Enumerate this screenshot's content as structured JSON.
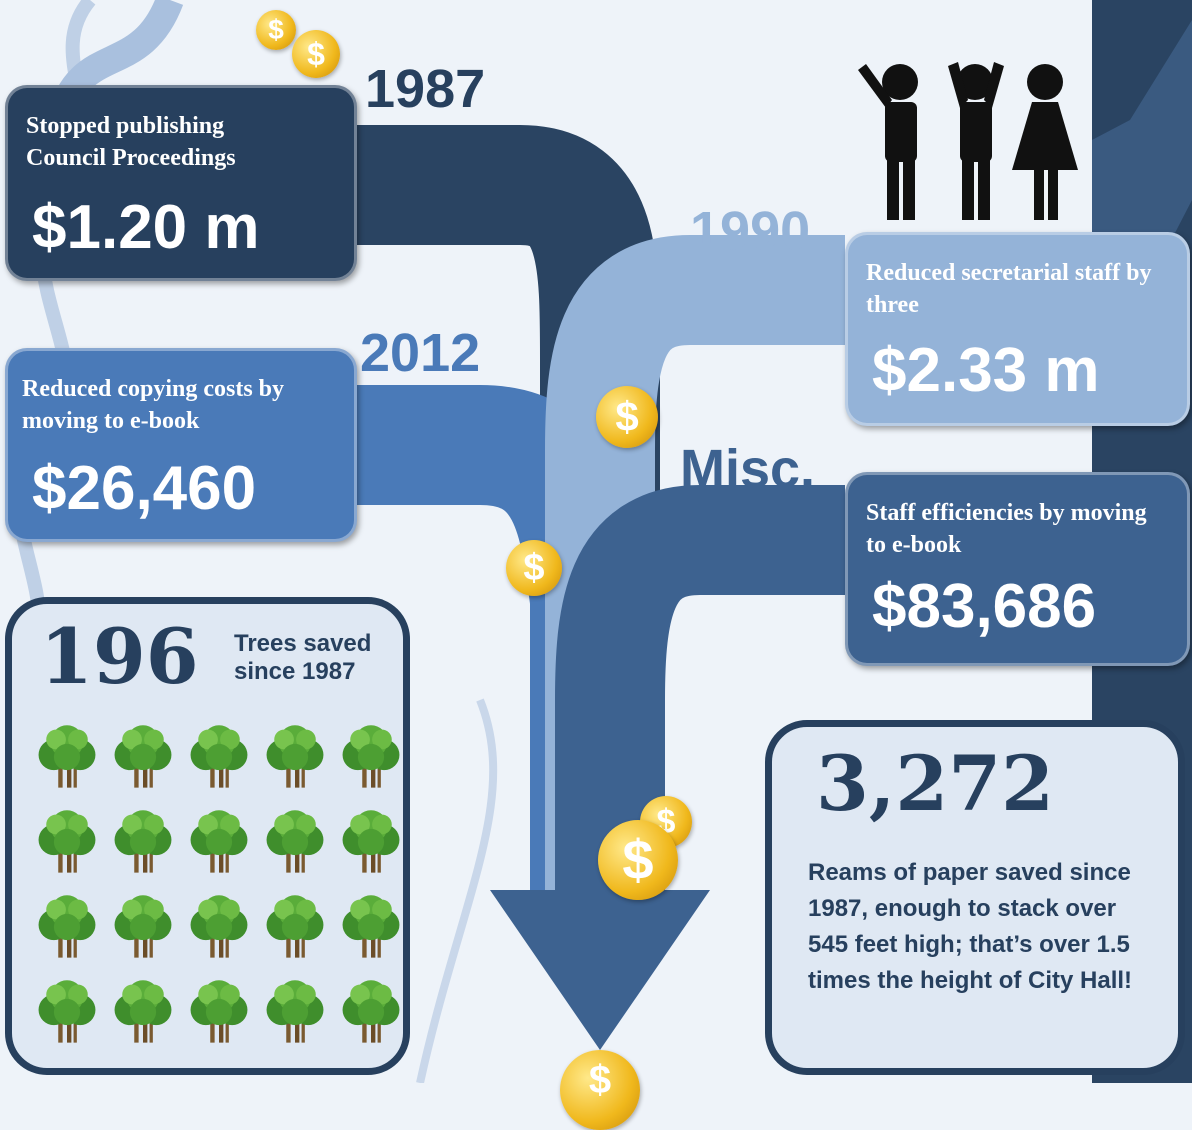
{
  "items": [
    {
      "year": "1987",
      "description": "Stopped publishing Council Proceedings",
      "amount": "$1.20 m"
    },
    {
      "year": "2012",
      "description": "Reduced copying costs by moving to e-book",
      "amount": "$26,460"
    },
    {
      "year": "1990",
      "description": "Reduced secretarial staff by three",
      "amount": "$2.33 m"
    },
    {
      "year": "Misc.",
      "description": "Staff efficiencies by moving to e-book",
      "amount": "$83,686"
    }
  ],
  "trees": {
    "count": "196",
    "label": "Trees saved since 1987"
  },
  "paper": {
    "count": "3,272",
    "description": "Reams of paper saved since 1987, enough to stack over 545 feet high; that’s over 1.5 times the height of City Hall!"
  },
  "coin_symbol": "$"
}
